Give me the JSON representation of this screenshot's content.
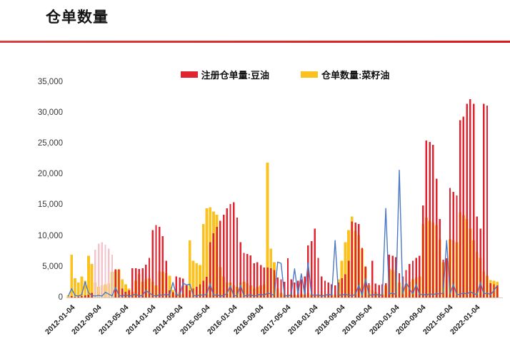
{
  "page": {
    "title": "仓单数量"
  },
  "chart_data": {
    "type": "bar",
    "title": "仓单数量",
    "grid": false,
    "legend_position": "top-center",
    "x_start_month": "2012-01",
    "x_tick_every_months": 8,
    "x_tick_labels": [
      "2012-01-04",
      "2012-09-04",
      "2013-05-04",
      "2014-01-04",
      "2014-09-04",
      "2015-05-04",
      "2016-01-04",
      "2016-09-04",
      "2017-05-04",
      "2018-01-04",
      "2018-09-04",
      "2019-05-04",
      "2020-01-04",
      "2020-09-04",
      "2021-05-04",
      "2022-01-04"
    ],
    "y_ticks": [
      0,
      5000,
      10000,
      15000,
      20000,
      25000,
      30000,
      35000
    ],
    "y_tick_labels": [
      "0",
      "5,000",
      "10,000",
      "15,000",
      "20,000",
      "25,000",
      "30,000",
      "35,000"
    ],
    "ylim": [
      0,
      35000
    ],
    "legend": [
      {
        "label": "注册仓单量:豆油",
        "color": "#e1242f"
      },
      {
        "label": "仓单数量:菜籽油",
        "color": "#fbc11e"
      }
    ],
    "colors": {
      "red": "#e1242f",
      "red_light": "#f4c4cd",
      "yellow": "#fbc11e",
      "blue": "#4e79c5",
      "axis": "#cfcfcf"
    },
    "light_red_month_range": [
      8,
      13
    ],
    "series": [
      {
        "name": "注册仓单量:豆油",
        "type": "bar",
        "color": "#e1242f",
        "legend_visible": true,
        "values": [
          0,
          300,
          200,
          200,
          300,
          400,
          500,
          800,
          7800,
          8800,
          9000,
          8600,
          8000,
          7000,
          4600,
          4600,
          1500,
          1000,
          1200,
          4800,
          4800,
          4700,
          4800,
          5400,
          6500,
          11000,
          11800,
          11500,
          10000,
          6000,
          1200,
          900,
          3500,
          3300,
          3100,
          2000,
          1200,
          1500,
          1800,
          2200,
          2800,
          3400,
          9000,
          10500,
          11500,
          12500,
          13500,
          14500,
          15200,
          15500,
          13000,
          9000,
          7300,
          7100,
          6900,
          5600,
          5800,
          5300,
          4900,
          4900,
          4800,
          4500,
          3300,
          3000,
          2600,
          6400,
          3000,
          2500,
          2800,
          3000,
          3500,
          8500,
          9200,
          11200,
          6500,
          3500,
          2800,
          2500,
          2200,
          2000,
          2500,
          3200,
          3800,
          6000,
          12400,
          12200,
          12000,
          8100,
          5100,
          2400,
          6000,
          2300,
          2100,
          2200,
          2400,
          7000,
          6800,
          6600,
          4000,
          3500,
          4500,
          5500,
          6000,
          6500,
          6800,
          15000,
          25500,
          25300,
          24800,
          19300,
          12800,
          6200,
          6400,
          17800,
          17200,
          16600,
          28800,
          29400,
          31500,
          32200,
          31500,
          13200,
          11200,
          31500,
          31200,
          2400,
          2200,
          2000
        ]
      },
      {
        "name": "仓单数量:菜籽油",
        "type": "bar",
        "color": "#fbc11e",
        "legend_visible": true,
        "values": [
          400,
          7000,
          3200,
          2500,
          3500,
          2800,
          6800,
          5500,
          2500,
          1800,
          2000,
          2200,
          2400,
          4200,
          4400,
          4600,
          3000,
          2200,
          1500,
          900,
          2800,
          3800,
          2600,
          3000,
          3200,
          2600,
          2000,
          4300,
          4200,
          4000,
          3600,
          1300,
          700,
          900,
          600,
          2000,
          9300,
          6000,
          5600,
          5300,
          12000,
          14500,
          14700,
          14000,
          13500,
          5000,
          3500,
          2500,
          2500,
          2000,
          1800,
          2500,
          2600,
          2400,
          2000,
          1500,
          1800,
          2000,
          2200,
          21900,
          8000,
          5800,
          1500,
          800,
          600,
          500,
          400,
          500,
          400,
          600,
          500,
          800,
          600,
          500,
          400,
          600,
          500,
          400,
          500,
          600,
          3000,
          6000,
          9000,
          11000,
          13200,
          10900,
          10200,
          8000,
          5000,
          2000,
          1200,
          900,
          700,
          600,
          2000,
          4700,
          4500,
          4300,
          2500,
          1800,
          2200,
          2600,
          3000,
          3300,
          3500,
          12000,
          13000,
          12500,
          12200,
          11800,
          9500,
          5800,
          5500,
          9500,
          9300,
          9000,
          13900,
          13400,
          12800,
          11200,
          9300,
          7400,
          6500,
          4300,
          3600,
          2900,
          2800,
          2600
        ]
      },
      {
        "name": "",
        "type": "line",
        "color": "#4e79c5",
        "legend_visible": false,
        "values": [
          250,
          1500,
          400,
          300,
          500,
          2600,
          800,
          400,
          300,
          400,
          300,
          900,
          600,
          300,
          1700,
          400,
          300,
          500,
          300,
          400,
          600,
          300,
          400,
          1200,
          800,
          400,
          300,
          500,
          400,
          600,
          400,
          2500,
          500,
          400,
          2400,
          2100,
          2200,
          400,
          300,
          500,
          400,
          600,
          2300,
          400,
          500,
          300,
          400,
          700,
          2000,
          300,
          400,
          2100,
          300,
          400,
          500,
          300,
          400,
          600,
          400,
          800,
          600,
          400,
          5800,
          5600,
          400,
          300,
          500,
          4700,
          600,
          3900,
          500,
          5700,
          500,
          400,
          500,
          300,
          400,
          600,
          400,
          9300,
          500,
          400,
          600,
          400,
          400,
          500,
          2100,
          400,
          3100,
          500,
          400,
          600,
          400,
          500,
          14500,
          600,
          800,
          500,
          20700,
          600,
          2500,
          1500,
          600,
          2200,
          500,
          600,
          400,
          700,
          500,
          700,
          600,
          800,
          9300,
          600,
          2200,
          500,
          600,
          800,
          600,
          1000,
          700,
          500,
          2500,
          600,
          800,
          500,
          1200,
          2000
        ]
      }
    ]
  }
}
